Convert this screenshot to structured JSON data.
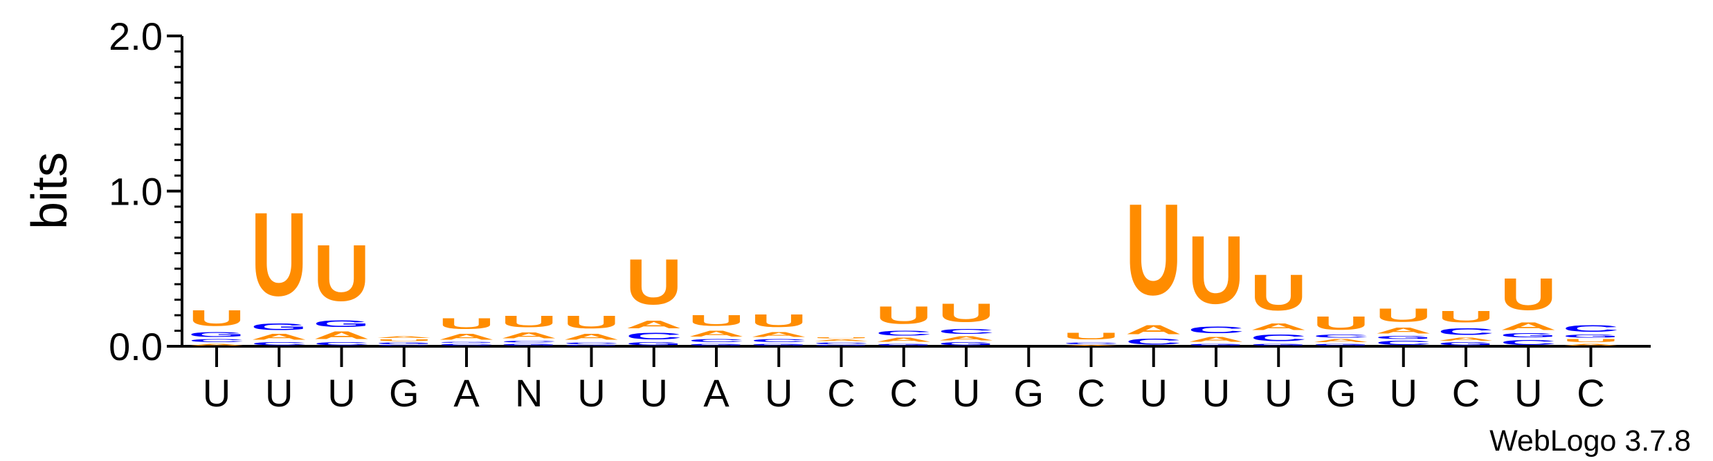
{
  "chart_data": {
    "type": "sequence-logo",
    "ylabel": "bits",
    "ylim": [
      0,
      2
    ],
    "yticks": [
      "0.0",
      "1.0",
      "2.0"
    ],
    "credit": "WebLogo 3.7.8",
    "colors": {
      "U": "#ff8c00",
      "A": "#ff8c00",
      "C": "#0000ff",
      "G": "#0000ff"
    },
    "positions": [
      {
        "label": "U",
        "stack": [
          [
            "A",
            0.02
          ],
          [
            "C",
            0.03
          ],
          [
            "G",
            0.05
          ],
          [
            "U",
            0.16
          ]
        ]
      },
      {
        "label": "U",
        "stack": [
          [
            "C",
            0.03
          ],
          [
            "A",
            0.06
          ],
          [
            "G",
            0.07
          ],
          [
            "U",
            0.86
          ]
        ]
      },
      {
        "label": "U",
        "stack": [
          [
            "C",
            0.03
          ],
          [
            "A",
            0.08
          ],
          [
            "G",
            0.07
          ],
          [
            "U",
            0.58
          ]
        ]
      },
      {
        "label": "G",
        "stack": [
          [
            "C",
            0.01
          ],
          [
            "G",
            0.02
          ],
          [
            "U",
            0.02
          ],
          [
            "A",
            0.02
          ]
        ]
      },
      {
        "label": "A",
        "stack": [
          [
            "C",
            0.02
          ],
          [
            "G",
            0.01
          ],
          [
            "A",
            0.06
          ],
          [
            "U",
            0.11
          ]
        ]
      },
      {
        "label": "N",
        "stack": [
          [
            "G",
            0.02
          ],
          [
            "C",
            0.02
          ],
          [
            "A",
            0.06
          ],
          [
            "U",
            0.12
          ]
        ]
      },
      {
        "label": "U",
        "stack": [
          [
            "G",
            0.01
          ],
          [
            "C",
            0.02
          ],
          [
            "A",
            0.06
          ],
          [
            "U",
            0.13
          ]
        ]
      },
      {
        "label": "U",
        "stack": [
          [
            "G",
            0.03
          ],
          [
            "C",
            0.07
          ],
          [
            "A",
            0.08
          ],
          [
            "U",
            0.47
          ]
        ]
      },
      {
        "label": "A",
        "stack": [
          [
            "G",
            0.02
          ],
          [
            "C",
            0.03
          ],
          [
            "A",
            0.06
          ],
          [
            "U",
            0.11
          ]
        ]
      },
      {
        "label": "U",
        "stack": [
          [
            "G",
            0.02
          ],
          [
            "C",
            0.03
          ],
          [
            "A",
            0.05
          ],
          [
            "U",
            0.13
          ]
        ]
      },
      {
        "label": "C",
        "stack": [
          [
            "G",
            0.01
          ],
          [
            "C",
            0.02
          ],
          [
            "A",
            0.02
          ],
          [
            "U",
            0.01
          ]
        ]
      },
      {
        "label": "C",
        "stack": [
          [
            "G",
            0.02
          ],
          [
            "A",
            0.04
          ],
          [
            "C",
            0.05
          ],
          [
            "U",
            0.18
          ]
        ]
      },
      {
        "label": "U",
        "stack": [
          [
            "G",
            0.03
          ],
          [
            "A",
            0.04
          ],
          [
            "C",
            0.05
          ],
          [
            "U",
            0.19
          ]
        ]
      },
      {
        "label": "G",
        "stack": [
          [
            "C",
            0.0
          ],
          [
            "U",
            0.0
          ]
        ]
      },
      {
        "label": "C",
        "stack": [
          [
            "A",
            0.01
          ],
          [
            "C",
            0.02
          ],
          [
            "U",
            0.07
          ]
        ]
      },
      {
        "label": "U",
        "stack": [
          [
            "C",
            0.06
          ],
          [
            "A",
            0.09
          ],
          [
            "U",
            0.94
          ]
        ]
      },
      {
        "label": "U",
        "stack": [
          [
            "G",
            0.02
          ],
          [
            "A",
            0.05
          ],
          [
            "C",
            0.07
          ],
          [
            "U",
            0.7
          ]
        ]
      },
      {
        "label": "U",
        "stack": [
          [
            "G",
            0.02
          ],
          [
            "C",
            0.07
          ],
          [
            "A",
            0.07
          ],
          [
            "U",
            0.37
          ]
        ]
      },
      {
        "label": "G",
        "stack": [
          [
            "G",
            0.02
          ],
          [
            "A",
            0.03
          ],
          [
            "C",
            0.03
          ],
          [
            "U",
            0.14
          ]
        ]
      },
      {
        "label": "U",
        "stack": [
          [
            "C",
            0.04
          ],
          [
            "G",
            0.03
          ],
          [
            "A",
            0.06
          ],
          [
            "U",
            0.14
          ]
        ]
      },
      {
        "label": "C",
        "stack": [
          [
            "G",
            0.03
          ],
          [
            "A",
            0.03
          ],
          [
            "C",
            0.07
          ],
          [
            "U",
            0.12
          ]
        ]
      },
      {
        "label": "U",
        "stack": [
          [
            "C",
            0.05
          ],
          [
            "G",
            0.04
          ],
          [
            "A",
            0.08
          ],
          [
            "U",
            0.33
          ]
        ]
      },
      {
        "label": "C",
        "stack": [
          [
            "A",
            0.02
          ],
          [
            "U",
            0.03
          ],
          [
            "G",
            0.03
          ],
          [
            "C",
            0.07
          ]
        ]
      }
    ]
  }
}
